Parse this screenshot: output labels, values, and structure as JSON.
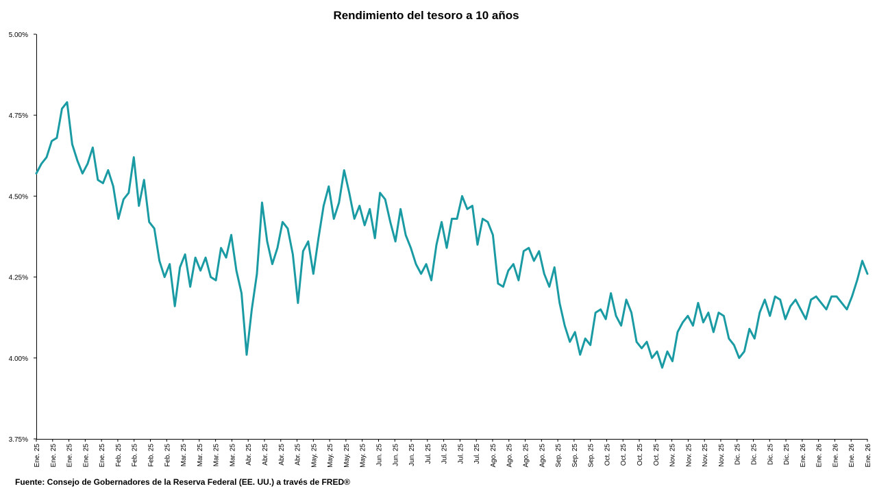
{
  "chart_data": {
    "type": "line",
    "title": "Rendimiento del tesoro a 10 años",
    "xlabel": "",
    "ylabel": "",
    "ylim": [
      3.75,
      5.0
    ],
    "yticks": [
      "3.75%",
      "4.00%",
      "4.25%",
      "4.50%",
      "4.75%",
      "5.00%"
    ],
    "ytick_values": [
      3.75,
      4.0,
      4.25,
      4.5,
      4.75,
      5.0
    ],
    "xticks": [
      "Ene. 25",
      "Ene. 25",
      "Ene. 25",
      "Ene. 25",
      "Ene. 25",
      "Feb. 25",
      "Feb. 25",
      "Feb. 25",
      "Feb. 25",
      "Mar. 25",
      "Mar. 25",
      "Mar. 25",
      "Mar. 25",
      "Abr. 25",
      "Abr. 25",
      "Abr. 25",
      "Abr. 25",
      "May. 25",
      "May. 25",
      "May. 25",
      "May. 25",
      "Jun. 25",
      "Jun. 25",
      "Jun. 25",
      "Jul. 25",
      "Jul. 25",
      "Jul. 25",
      "Jul. 25",
      "Ago. 25",
      "Ago. 25",
      "Ago. 25",
      "Ago. 25",
      "Sep. 25",
      "Sep. 25",
      "Sep. 25",
      "Oct. 25",
      "Oct. 25",
      "Oct. 25",
      "Oct. 25",
      "Nov. 25",
      "Nov. 25",
      "Nov. 25",
      "Nov. 25",
      "Dic. 25",
      "Dic. 25",
      "Dic. 25",
      "Dic. 25",
      "Ene. 26",
      "Ene. 26",
      "Ene. 26",
      "Ene. 26",
      "Ene. 26"
    ],
    "grid": false,
    "legend": "none",
    "series": [
      {
        "color": "#1a9ba4",
        "values": [
          4.57,
          4.6,
          4.62,
          4.67,
          4.68,
          4.77,
          4.79,
          4.66,
          4.61,
          4.57,
          4.6,
          4.65,
          4.55,
          4.54,
          4.58,
          4.53,
          4.43,
          4.49,
          4.51,
          4.62,
          4.47,
          4.55,
          4.42,
          4.4,
          4.3,
          4.25,
          4.29,
          4.16,
          4.28,
          4.32,
          4.22,
          4.31,
          4.27,
          4.31,
          4.25,
          4.24,
          4.34,
          4.31,
          4.38,
          4.27,
          4.2,
          4.01,
          4.15,
          4.26,
          4.48,
          4.36,
          4.29,
          4.34,
          4.42,
          4.4,
          4.32,
          4.17,
          4.33,
          4.36,
          4.26,
          4.37,
          4.47,
          4.53,
          4.43,
          4.48,
          4.58,
          4.51,
          4.43,
          4.47,
          4.41,
          4.46,
          4.37,
          4.51,
          4.49,
          4.42,
          4.36,
          4.46,
          4.38,
          4.34,
          4.29,
          4.26,
          4.29,
          4.24,
          4.35,
          4.42,
          4.34,
          4.43,
          4.43,
          4.5,
          4.46,
          4.47,
          4.35,
          4.43,
          4.42,
          4.38,
          4.23,
          4.22,
          4.27,
          4.29,
          4.24,
          4.33,
          4.34,
          4.3,
          4.33,
          4.26,
          4.22,
          4.28,
          4.17,
          4.1,
          4.05,
          4.08,
          4.01,
          4.06,
          4.04,
          4.14,
          4.15,
          4.12,
          4.2,
          4.13,
          4.1,
          4.18,
          4.14,
          4.05,
          4.03,
          4.05,
          4.0,
          4.02,
          3.97,
          4.02,
          3.99,
          4.08,
          4.11,
          4.13,
          4.1,
          4.17,
          4.11,
          4.14,
          4.08,
          4.14,
          4.13,
          4.06,
          4.04,
          4.0,
          4.02,
          4.09,
          4.06,
          4.14,
          4.18,
          4.13,
          4.19,
          4.18,
          4.12,
          4.16,
          4.18,
          4.15,
          4.12,
          4.18,
          4.19,
          4.17,
          4.15,
          4.19,
          4.19,
          4.17,
          4.15,
          4.19,
          4.24,
          4.3,
          4.26
        ]
      }
    ]
  },
  "source": "Fuente: Consejo de Gobernadores de la Reserva Federal (EE. UU.) a través de FRED®"
}
